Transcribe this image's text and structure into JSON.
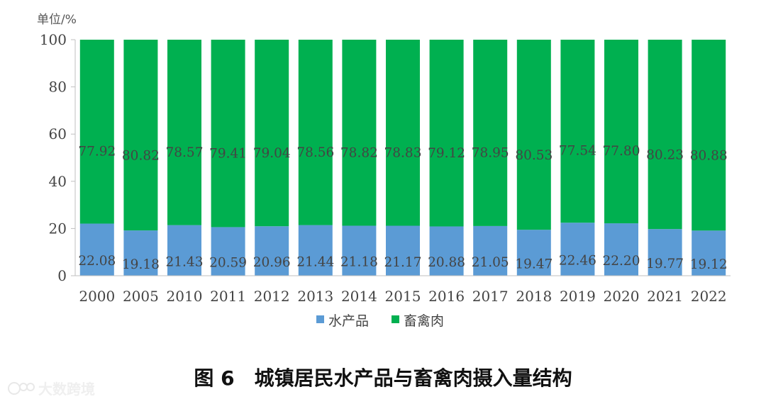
{
  "chart_data": {
    "type": "bar",
    "stacked": true,
    "unit_label": "单位/%",
    "categories": [
      "2000",
      "2005",
      "2010",
      "2011",
      "2012",
      "2013",
      "2014",
      "2015",
      "2016",
      "2017",
      "2018",
      "2019",
      "2020",
      "2021",
      "2022"
    ],
    "series": [
      {
        "name": "水产品",
        "color": "#5b9bd5",
        "values": [
          22.08,
          19.18,
          21.43,
          20.59,
          20.96,
          21.44,
          21.18,
          21.17,
          20.88,
          21.05,
          19.47,
          22.46,
          22.2,
          19.77,
          19.12
        ],
        "labels": [
          "22.08",
          "19.18",
          "21.43",
          "20.59",
          "20.96",
          "21.44",
          "21.18",
          "21.17",
          "20.88",
          "21.05",
          "19.47",
          "22.46",
          "22.20",
          "19.77",
          "19.12"
        ]
      },
      {
        "name": "畜禽肉",
        "color": "#00b050",
        "values": [
          77.92,
          80.82,
          78.57,
          79.41,
          79.04,
          78.56,
          78.82,
          78.83,
          79.12,
          78.95,
          80.53,
          77.54,
          77.8,
          80.23,
          80.88
        ],
        "labels": [
          "77.92",
          "80.82",
          "78.57",
          "79.41",
          "79.04",
          "78.56",
          "78.82",
          "78.83",
          "79.12",
          "78.95",
          "80.53",
          "77.54",
          "77.80",
          "80.23",
          "80.88"
        ]
      }
    ],
    "ylim": [
      0,
      100
    ],
    "yticks": [
      "0",
      "20",
      "40",
      "60",
      "80",
      "100"
    ],
    "grid": false,
    "legend_position": "bottom",
    "caption": "图 6　城镇居民水产品与畜禽肉摄入量结构"
  },
  "watermark": {
    "text": "大数跨境"
  }
}
